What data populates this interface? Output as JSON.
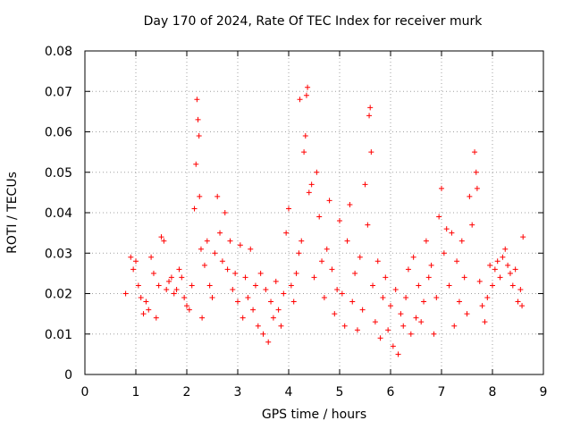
{
  "chart_data": {
    "type": "scatter",
    "title": "Day 170 of 2024, Rate Of TEC Index for receiver murk",
    "xlabel": "GPS time / hours",
    "ylabel": "ROTI / TECUs",
    "xlim": [
      0,
      9
    ],
    "ylim": [
      0,
      0.08
    ],
    "xticks": [
      "0",
      "1",
      "2",
      "3",
      "4",
      "5",
      "6",
      "7",
      "8",
      "9"
    ],
    "yticks": [
      "0",
      "0.01",
      "0.02",
      "0.03",
      "0.04",
      "0.05",
      "0.06",
      "0.07",
      "0.08"
    ],
    "grid": true,
    "marker": "+",
    "color": "#ff0000",
    "series": [
      {
        "name": "ROTI",
        "points": [
          [
            0.8,
            0.02
          ],
          [
            0.9,
            0.029
          ],
          [
            0.95,
            0.026
          ],
          [
            1.0,
            0.028
          ],
          [
            1.05,
            0.022
          ],
          [
            1.1,
            0.019
          ],
          [
            1.15,
            0.015
          ],
          [
            1.2,
            0.018
          ],
          [
            1.25,
            0.016
          ],
          [
            1.3,
            0.029
          ],
          [
            1.35,
            0.025
          ],
          [
            1.4,
            0.014
          ],
          [
            1.45,
            0.022
          ],
          [
            1.5,
            0.034
          ],
          [
            1.55,
            0.033
          ],
          [
            1.6,
            0.021
          ],
          [
            1.65,
            0.023
          ],
          [
            1.7,
            0.024
          ],
          [
            1.75,
            0.02
          ],
          [
            1.8,
            0.021
          ],
          [
            1.85,
            0.026
          ],
          [
            1.9,
            0.024
          ],
          [
            1.95,
            0.019
          ],
          [
            2.0,
            0.017
          ],
          [
            2.05,
            0.016
          ],
          [
            2.1,
            0.022
          ],
          [
            2.15,
            0.041
          ],
          [
            2.18,
            0.052
          ],
          [
            2.2,
            0.068
          ],
          [
            2.22,
            0.063
          ],
          [
            2.24,
            0.059
          ],
          [
            2.25,
            0.044
          ],
          [
            2.28,
            0.031
          ],
          [
            2.3,
            0.014
          ],
          [
            2.35,
            0.027
          ],
          [
            2.4,
            0.033
          ],
          [
            2.45,
            0.022
          ],
          [
            2.5,
            0.019
          ],
          [
            2.55,
            0.03
          ],
          [
            2.6,
            0.044
          ],
          [
            2.65,
            0.035
          ],
          [
            2.7,
            0.028
          ],
          [
            2.75,
            0.04
          ],
          [
            2.8,
            0.026
          ],
          [
            2.85,
            0.033
          ],
          [
            2.9,
            0.021
          ],
          [
            2.95,
            0.025
          ],
          [
            3.0,
            0.018
          ],
          [
            3.05,
            0.032
          ],
          [
            3.1,
            0.014
          ],
          [
            3.15,
            0.024
          ],
          [
            3.2,
            0.019
          ],
          [
            3.25,
            0.031
          ],
          [
            3.3,
            0.016
          ],
          [
            3.35,
            0.022
          ],
          [
            3.4,
            0.012
          ],
          [
            3.45,
            0.025
          ],
          [
            3.5,
            0.01
          ],
          [
            3.55,
            0.021
          ],
          [
            3.6,
            0.008
          ],
          [
            3.65,
            0.018
          ],
          [
            3.7,
            0.014
          ],
          [
            3.75,
            0.023
          ],
          [
            3.8,
            0.016
          ],
          [
            3.85,
            0.012
          ],
          [
            3.9,
            0.02
          ],
          [
            3.95,
            0.035
          ],
          [
            4.0,
            0.041
          ],
          [
            4.05,
            0.022
          ],
          [
            4.1,
            0.018
          ],
          [
            4.15,
            0.025
          ],
          [
            4.2,
            0.03
          ],
          [
            4.22,
            0.068
          ],
          [
            4.25,
            0.033
          ],
          [
            4.3,
            0.055
          ],
          [
            4.33,
            0.059
          ],
          [
            4.35,
            0.069
          ],
          [
            4.37,
            0.071
          ],
          [
            4.4,
            0.045
          ],
          [
            4.45,
            0.047
          ],
          [
            4.5,
            0.024
          ],
          [
            4.55,
            0.05
          ],
          [
            4.6,
            0.039
          ],
          [
            4.65,
            0.028
          ],
          [
            4.7,
            0.019
          ],
          [
            4.75,
            0.031
          ],
          [
            4.8,
            0.043
          ],
          [
            4.85,
            0.026
          ],
          [
            4.9,
            0.015
          ],
          [
            4.95,
            0.021
          ],
          [
            5.0,
            0.038
          ],
          [
            5.05,
            0.02
          ],
          [
            5.1,
            0.012
          ],
          [
            5.15,
            0.033
          ],
          [
            5.2,
            0.042
          ],
          [
            5.25,
            0.018
          ],
          [
            5.3,
            0.025
          ],
          [
            5.35,
            0.011
          ],
          [
            5.4,
            0.029
          ],
          [
            5.45,
            0.016
          ],
          [
            5.5,
            0.047
          ],
          [
            5.55,
            0.037
          ],
          [
            5.58,
            0.064
          ],
          [
            5.6,
            0.066
          ],
          [
            5.62,
            0.055
          ],
          [
            5.65,
            0.022
          ],
          [
            5.7,
            0.013
          ],
          [
            5.75,
            0.028
          ],
          [
            5.8,
            0.009
          ],
          [
            5.85,
            0.019
          ],
          [
            5.9,
            0.024
          ],
          [
            5.95,
            0.011
          ],
          [
            6.0,
            0.017
          ],
          [
            6.05,
            0.007
          ],
          [
            6.1,
            0.021
          ],
          [
            6.15,
            0.005
          ],
          [
            6.2,
            0.015
          ],
          [
            6.25,
            0.012
          ],
          [
            6.3,
            0.019
          ],
          [
            6.35,
            0.026
          ],
          [
            6.4,
            0.01
          ],
          [
            6.45,
            0.029
          ],
          [
            6.5,
            0.014
          ],
          [
            6.55,
            0.022
          ],
          [
            6.6,
            0.013
          ],
          [
            6.65,
            0.018
          ],
          [
            6.7,
            0.033
          ],
          [
            6.75,
            0.024
          ],
          [
            6.8,
            0.027
          ],
          [
            6.85,
            0.01
          ],
          [
            6.9,
            0.019
          ],
          [
            6.95,
            0.039
          ],
          [
            7.0,
            0.046
          ],
          [
            7.05,
            0.03
          ],
          [
            7.1,
            0.036
          ],
          [
            7.15,
            0.022
          ],
          [
            7.2,
            0.035
          ],
          [
            7.25,
            0.012
          ],
          [
            7.3,
            0.028
          ],
          [
            7.35,
            0.018
          ],
          [
            7.4,
            0.033
          ],
          [
            7.45,
            0.024
          ],
          [
            7.5,
            0.015
          ],
          [
            7.55,
            0.044
          ],
          [
            7.6,
            0.037
          ],
          [
            7.65,
            0.055
          ],
          [
            7.68,
            0.05
          ],
          [
            7.7,
            0.046
          ],
          [
            7.75,
            0.023
          ],
          [
            7.8,
            0.017
          ],
          [
            7.85,
            0.013
          ],
          [
            7.9,
            0.019
          ],
          [
            7.95,
            0.027
          ],
          [
            8.0,
            0.022
          ],
          [
            8.05,
            0.026
          ],
          [
            8.1,
            0.028
          ],
          [
            8.15,
            0.024
          ],
          [
            8.2,
            0.029
          ],
          [
            8.25,
            0.031
          ],
          [
            8.3,
            0.027
          ],
          [
            8.35,
            0.025
          ],
          [
            8.4,
            0.022
          ],
          [
            8.45,
            0.026
          ],
          [
            8.5,
            0.018
          ],
          [
            8.55,
            0.021
          ],
          [
            8.58,
            0.017
          ],
          [
            8.6,
            0.034
          ]
        ]
      }
    ]
  }
}
